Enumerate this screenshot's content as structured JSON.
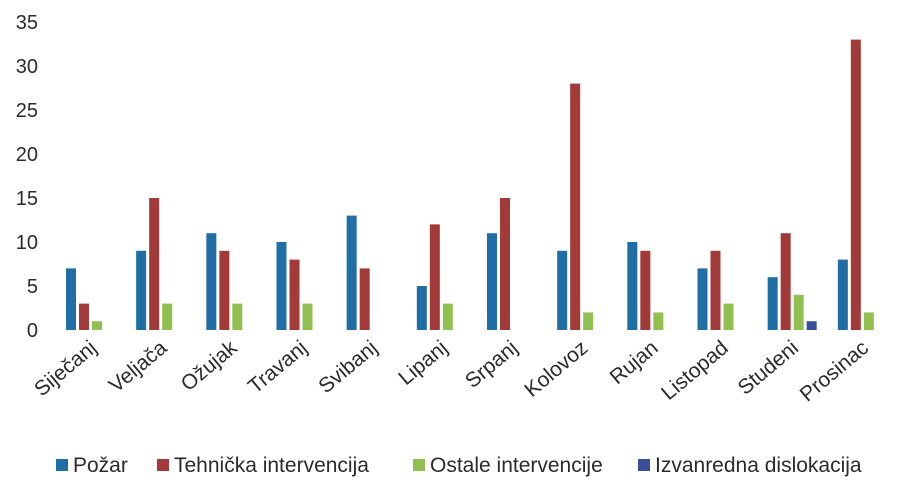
{
  "chart_data": {
    "type": "bar",
    "title": "",
    "xlabel": "",
    "ylabel": "",
    "ylim": [
      0,
      35
    ],
    "yticks": [
      0,
      5,
      10,
      15,
      20,
      25,
      30,
      35
    ],
    "grid": false,
    "legend_position": "bottom",
    "categories": [
      "Siječanj",
      "Veljača",
      "Ožujak",
      "Travanj",
      "Svibanj",
      "Lipanj",
      "Srpanj",
      "Kolovoz",
      "Rujan",
      "Listopad",
      "Studeni",
      "Prosinac"
    ],
    "series": [
      {
        "name": "Požar",
        "color": "#1f6fa6",
        "values": [
          7,
          9,
          11,
          10,
          13,
          5,
          11,
          9,
          10,
          7,
          6,
          8
        ]
      },
      {
        "name": "Tehnička intervencija",
        "color": "#a33a3a",
        "values": [
          3,
          15,
          9,
          8,
          7,
          12,
          15,
          28,
          9,
          9,
          11,
          33
        ]
      },
      {
        "name": "Ostale intervencije",
        "color": "#92c050",
        "values": [
          1,
          3,
          3,
          3,
          0,
          3,
          0,
          2,
          2,
          3,
          4,
          2
        ]
      },
      {
        "name": "Izvanredna dislokacija",
        "color": "#3a4f9a",
        "values": [
          0,
          0,
          0,
          0,
          0,
          0,
          0,
          0,
          0,
          0,
          1,
          0
        ]
      }
    ]
  }
}
